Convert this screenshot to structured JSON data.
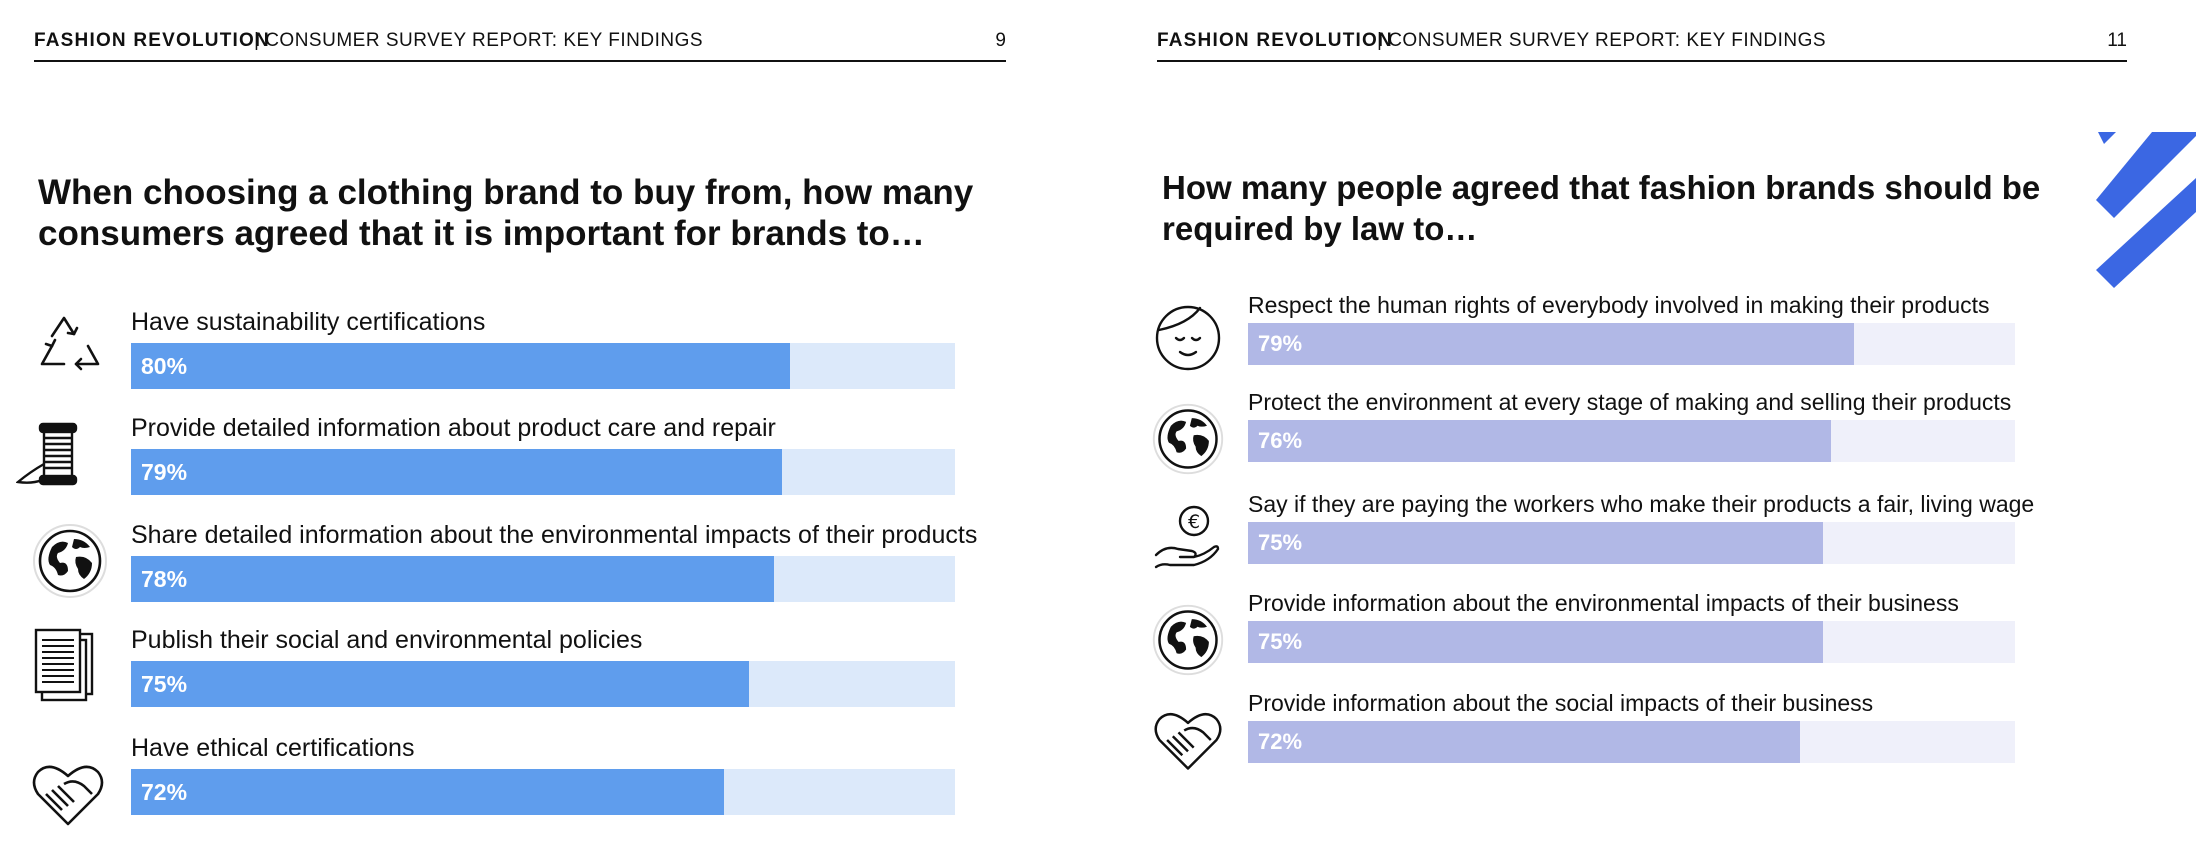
{
  "left_page": {
    "header": {
      "brand": "FASHION REVOLUTION",
      "section": "| CONSUMER SURVEY REPORT: KEY FINDINGS",
      "page_number": "9"
    },
    "title": "When choosing a clothing brand to buy from, how many consumers agreed that it is important for brands to…",
    "items": [
      {
        "label": "Have sustainability certifications",
        "percent": 80,
        "percent_label": "80%",
        "icon": "recycle-icon"
      },
      {
        "label": "Provide detailed information about product care and repair",
        "percent": 79,
        "percent_label": "79%",
        "icon": "thread-spool-icon"
      },
      {
        "label": "Share detailed information about the environmental impacts of their products",
        "percent": 78,
        "percent_label": "78%",
        "icon": "globe-icon"
      },
      {
        "label": "Publish their social and environmental policies",
        "percent": 75,
        "percent_label": "75%",
        "icon": "document-stack-icon"
      },
      {
        "label": "Have ethical certifications",
        "percent": 72,
        "percent_label": "72%",
        "icon": "heart-handshake-icon"
      }
    ]
  },
  "right_page": {
    "header": {
      "brand": "FASHION REVOLUTION",
      "section": "| CONSUMER SURVEY REPORT: KEY FINDINGS",
      "page_number": "11"
    },
    "title": "How many people agreed that fashion brands should be required by law to…",
    "items": [
      {
        "label": "Respect the human rights of everybody involved in making their products",
        "percent": 79,
        "percent_label": "79%",
        "icon": "person-face-icon"
      },
      {
        "label": "Protect the environment at every stage of making and selling their products",
        "percent": 76,
        "percent_label": "76%",
        "icon": "globe-icon"
      },
      {
        "label": "Say if they are paying the workers who make their products a fair, living wage",
        "percent": 75,
        "percent_label": "75%",
        "icon": "hand-euro-coin-icon"
      },
      {
        "label": "Provide information about the environmental impacts of their business",
        "percent": 75,
        "percent_label": "75%",
        "icon": "globe-icon"
      },
      {
        "label": "Provide information about the social impacts of their business",
        "percent": 72,
        "percent_label": "72%",
        "icon": "heart-handshake-icon"
      }
    ]
  },
  "colors": {
    "left_bar_fill": "#5f9ded",
    "left_bar_track": "#dce9fa",
    "right_bar_fill": "#b1b8e6",
    "right_bar_track": "#eff0fa",
    "accent_stripes": "#3b67e3"
  }
}
